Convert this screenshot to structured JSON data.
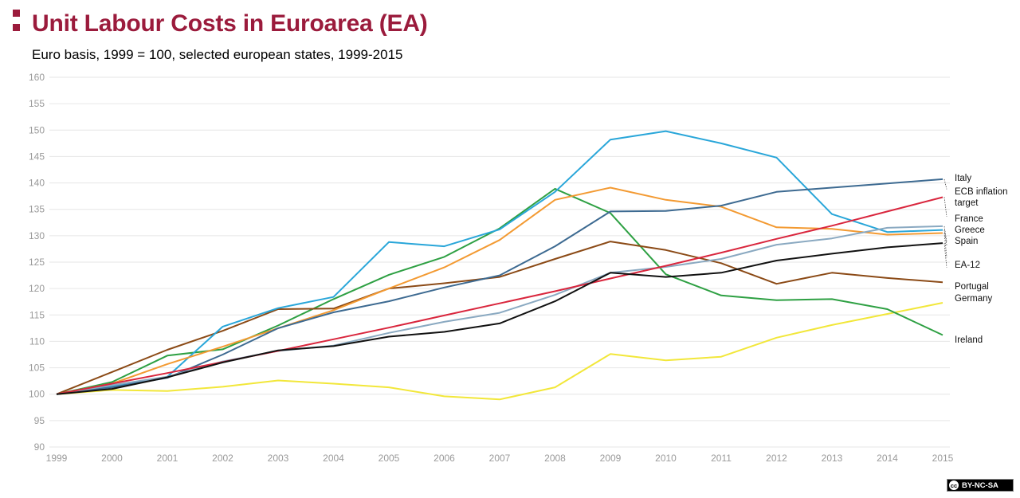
{
  "header": {
    "title": "Unit Labour Costs in Euroarea (EA)",
    "subtitle": "Euro basis, 1999 = 100, selected european states, 1999-2015"
  },
  "license": {
    "label": "BY-NC-SA",
    "icon": "cc-icon",
    "symbol": "cc"
  },
  "chart_data": {
    "type": "line",
    "title": "Unit Labour Costs in Euroarea (EA)",
    "subtitle": "Euro basis, 1999 = 100, selected european states, 1999-2015",
    "xlabel": "",
    "ylabel": "",
    "x": [
      1999,
      2000,
      2001,
      2002,
      2003,
      2004,
      2005,
      2006,
      2007,
      2008,
      2009,
      2010,
      2011,
      2012,
      2013,
      2014,
      2015
    ],
    "ylim": [
      90,
      160
    ],
    "yticks": [
      90,
      95,
      100,
      105,
      110,
      115,
      120,
      125,
      130,
      135,
      140,
      145,
      150,
      155,
      160
    ],
    "grid": true,
    "legend": "end-labels-right",
    "series": [
      {
        "name": "",
        "color": "#f2e73a",
        "values": [
          100,
          100.8,
          100.6,
          101.4,
          102.6,
          102.0,
          101.3,
          99.6,
          99.0,
          101.3,
          107.6,
          106.4,
          107.1,
          110.7,
          113.1,
          115.2,
          117.3
        ]
      },
      {
        "name": "Ireland",
        "color": "#2ea043",
        "values": [
          100,
          102.3,
          107.3,
          108.5,
          113.0,
          118.0,
          122.6,
          126.0,
          131.4,
          138.9,
          134.3,
          122.7,
          118.7,
          117.8,
          118.0,
          116.1,
          111.2
        ]
      },
      {
        "name": "Portugal",
        "color": "#8b4a16",
        "values": [
          100,
          104.2,
          108.4,
          112.0,
          116.1,
          116.2,
          120.0,
          121.0,
          122.2,
          125.6,
          128.9,
          127.3,
          124.8,
          120.9,
          123.0,
          122.0,
          121.2
        ]
      },
      {
        "name": "Greece",
        "color": "#29a6d9",
        "values": [
          100,
          101.5,
          103.3,
          112.8,
          116.3,
          118.4,
          128.8,
          128.0,
          131.2,
          138.3,
          148.2,
          149.8,
          147.5,
          144.8,
          134.1,
          130.7,
          131.1
        ]
      },
      {
        "name": "Spain",
        "color": "#f39a32",
        "values": [
          100,
          102.0,
          105.7,
          109.0,
          112.5,
          115.9,
          120.0,
          124.0,
          129.2,
          136.8,
          139.1,
          136.8,
          135.5,
          131.6,
          131.3,
          130.2,
          130.5
        ]
      },
      {
        "name": "Italy",
        "color": "#3d6a91",
        "values": [
          100,
          101.3,
          103.1,
          107.5,
          112.5,
          115.5,
          117.6,
          120.2,
          122.5,
          128.0,
          134.6,
          134.7,
          135.7,
          138.3,
          139.1,
          139.9,
          140.7
        ]
      },
      {
        "name": "France",
        "color": "#8aa9c1",
        "values": [
          100,
          101.7,
          103.3,
          106.2,
          108.2,
          109.2,
          111.6,
          113.7,
          115.4,
          118.8,
          123.0,
          124.1,
          125.6,
          128.3,
          129.5,
          131.5,
          131.8
        ]
      },
      {
        "name": "ECB inflation target",
        "color": "#d9263d",
        "values": [
          100,
          102.0,
          104.0,
          106.1,
          108.2,
          110.4,
          112.6,
          114.9,
          117.2,
          119.5,
          121.9,
          124.3,
          126.8,
          129.4,
          131.9,
          134.6,
          137.3
        ]
      },
      {
        "name": "EA-12",
        "color": "#111111",
        "values": [
          100,
          101.0,
          103.2,
          106.0,
          108.3,
          109.1,
          110.9,
          111.8,
          113.4,
          117.6,
          123.0,
          122.2,
          123.0,
          125.3,
          126.6,
          127.8,
          128.6
        ]
      }
    ],
    "end_labels": [
      "Italy",
      "ECB inflation",
      "target",
      "France",
      "Greece",
      "Spain",
      "EA-12",
      "Portugal",
      "Germany",
      "Ireland"
    ]
  }
}
